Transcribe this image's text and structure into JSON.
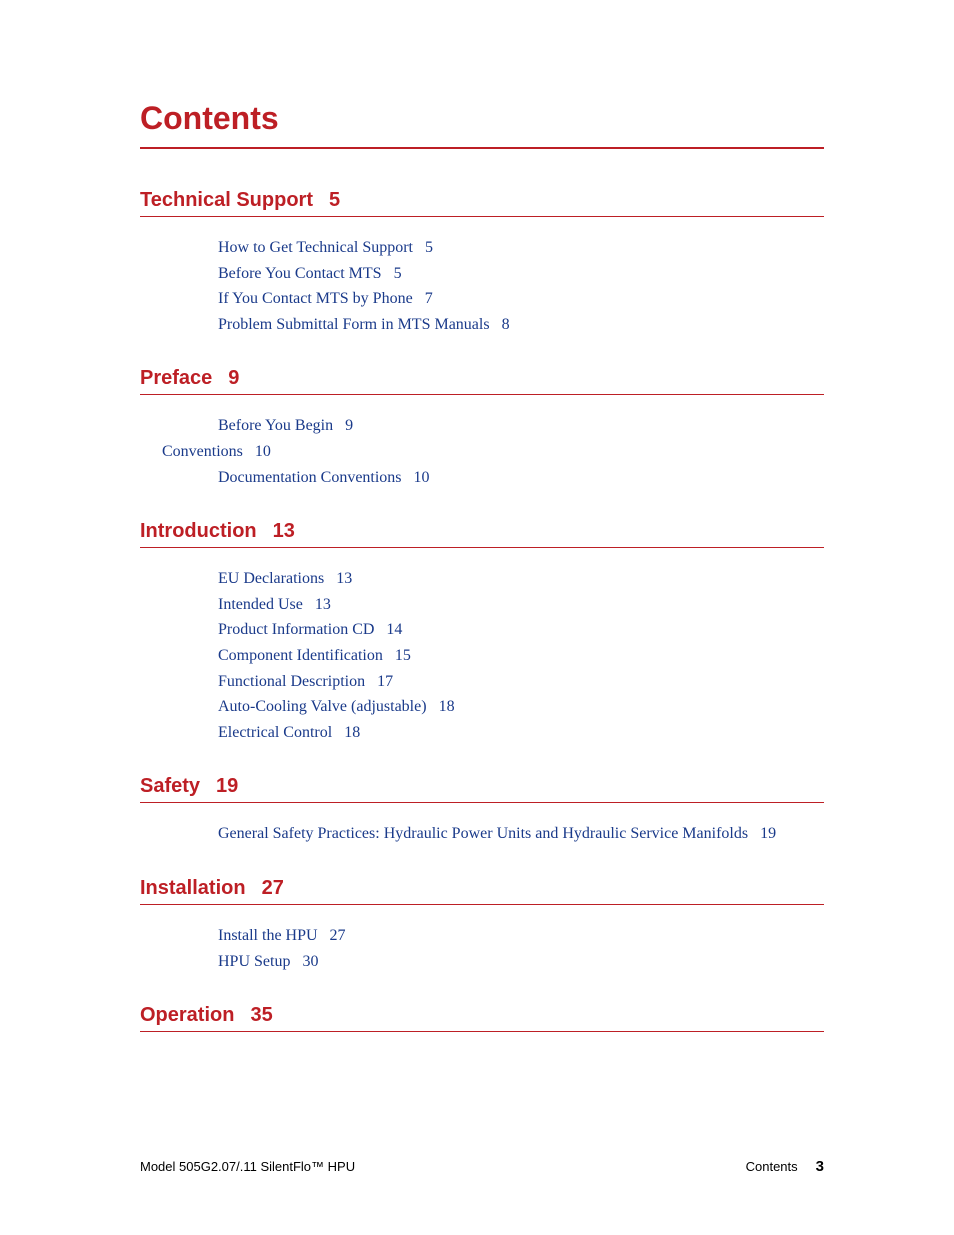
{
  "colors": {
    "accent": "#bd1f25",
    "link": "#1a3a8a",
    "text": "#000000",
    "background": "#ffffff"
  },
  "typography": {
    "title_font": "Arial",
    "title_size_pt": 32,
    "section_heading_size_pt": 20,
    "body_font": "Times New Roman",
    "body_size_pt": 16,
    "footer_size_pt": 13
  },
  "title": "Contents",
  "sections": [
    {
      "heading": "Technical Support",
      "page": "5",
      "entries": [
        {
          "label": "How to Get Technical Support",
          "page": "5",
          "indent": 1
        },
        {
          "label": "Before You Contact MTS",
          "page": "5",
          "indent": 1
        },
        {
          "label": "If You Contact MTS by Phone",
          "page": "7",
          "indent": 1
        },
        {
          "label": "Problem Submittal Form in MTS Manuals",
          "page": "8",
          "indent": 1
        }
      ]
    },
    {
      "heading": "Preface",
      "page": "9",
      "entries": [
        {
          "label": "Before You Begin",
          "page": "9",
          "indent": 1
        },
        {
          "label": "Conventions",
          "page": "10",
          "indent": 0
        },
        {
          "label": "Documentation Conventions",
          "page": "10",
          "indent": 1
        }
      ]
    },
    {
      "heading": "Introduction",
      "page": "13",
      "entries": [
        {
          "label": "EU Declarations",
          "page": "13",
          "indent": 1
        },
        {
          "label": "Intended Use",
          "page": "13",
          "indent": 1
        },
        {
          "label": "Product Information CD",
          "page": "14",
          "indent": 1
        },
        {
          "label": "Component Identification",
          "page": "15",
          "indent": 1
        },
        {
          "label": "Functional Description",
          "page": "17",
          "indent": 1
        },
        {
          "label": "Auto-Cooling Valve (adjustable)",
          "page": "18",
          "indent": 1
        },
        {
          "label": "Electrical Control",
          "page": "18",
          "indent": 1
        }
      ]
    },
    {
      "heading": "Safety",
      "page": "19",
      "entries": [
        {
          "label": "General Safety Practices: Hydraulic Power Units and Hydraulic Service Manifolds",
          "page": "19",
          "indent": 1
        }
      ]
    },
    {
      "heading": "Installation",
      "page": "27",
      "entries": [
        {
          "label": "Install the HPU",
          "page": "27",
          "indent": 1
        },
        {
          "label": "HPU Setup",
          "page": "30",
          "indent": 1
        }
      ]
    },
    {
      "heading": "Operation",
      "page": "35",
      "entries": []
    }
  ],
  "footer": {
    "left": "Model 505G2.07/.11 SilentFlo™ HPU",
    "right_label": "Contents",
    "page_number": "3"
  }
}
